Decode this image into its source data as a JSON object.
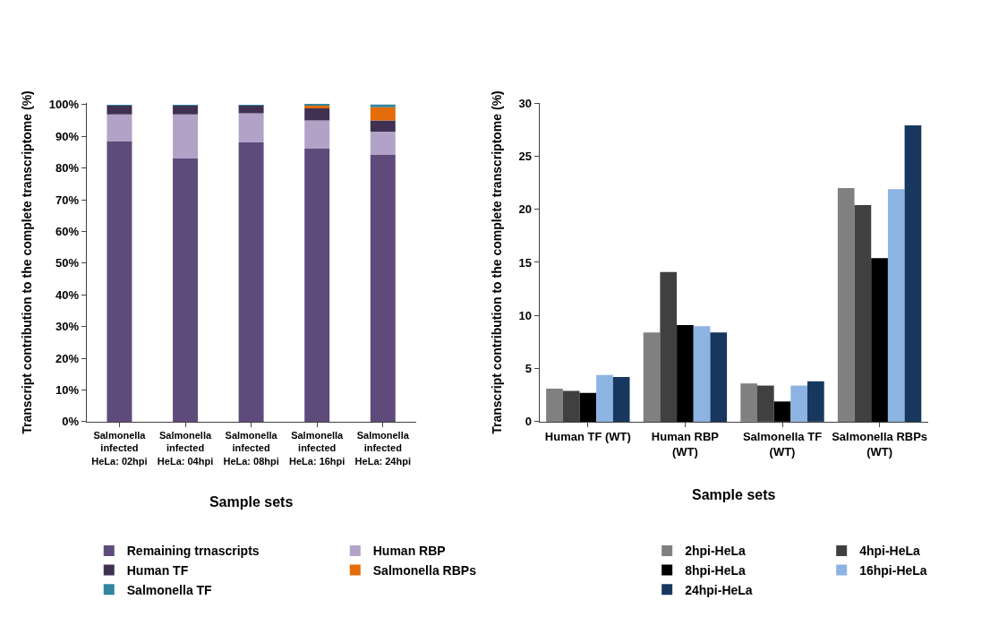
{
  "chart_data": [
    {
      "type": "bar",
      "stacked": true,
      "xlabel": "Sample sets",
      "ylabel": "Transcript contribution to the complete transcriptome (%)",
      "categories": [
        "Salmonella\ninfected\nHeLa: 02hpi",
        "Salmonella\ninfected\nHeLa: 04hpi",
        "Salmonella\ninfected\nHeLa: 08hpi",
        "Salmonella\ninfected\nHeLa: 16hpi",
        "Salmonella\ninfected\nHeLa: 24hpi"
      ],
      "series": [
        {
          "name": "Remaining trnascripts",
          "color": "#5f4b7b",
          "values": [
            88.5,
            83.0,
            88.1,
            86.1,
            84.3
          ]
        },
        {
          "name": "Human RBP",
          "color": "#b2a2c7",
          "values": [
            8.4,
            13.9,
            9.2,
            8.9,
            7.2
          ]
        },
        {
          "name": "Human TF",
          "color": "#403152",
          "values": [
            2.8,
            2.8,
            2.5,
            3.8,
            3.5
          ]
        },
        {
          "name": "Salmonella RBPs",
          "color": "#e46c0a",
          "values": [
            null,
            null,
            null,
            0.9,
            4.2
          ]
        },
        {
          "name": "Salmonella TF",
          "color": "#31859c",
          "values": [
            0.2,
            0.2,
            0.1,
            0.3,
            0.8
          ]
        }
      ],
      "ylim": [
        0,
        100.5
      ],
      "yticks": [
        {
          "value": 0,
          "label": "0%"
        },
        {
          "value": 10,
          "label": "10%"
        },
        {
          "value": 20,
          "label": "20%"
        },
        {
          "value": 30,
          "label": "30%"
        },
        {
          "value": 40,
          "label": "40%"
        },
        {
          "value": 50,
          "label": "50%"
        },
        {
          "value": 60,
          "label": "60%"
        },
        {
          "value": 70,
          "label": "70%"
        },
        {
          "value": 80,
          "label": "80%"
        },
        {
          "value": 90,
          "label": "90%"
        },
        {
          "value": 100,
          "label": "100%"
        }
      ],
      "legend": "bottom"
    },
    {
      "type": "bar",
      "xlabel": "Sample sets",
      "ylabel": "Transcript contribution to the complete transcriptome (%)",
      "categories": [
        "Human TF (WT)",
        "Human RBP\n(WT)",
        "Salmonella TF\n(WT)",
        "Salmonella RBPs\n(WT)"
      ],
      "series": [
        {
          "name": "2hpi-HeLa",
          "color": "#808080",
          "values": [
            3.1,
            8.4,
            3.6,
            22.0
          ]
        },
        {
          "name": "4hpi-HeLa",
          "color": "#404040",
          "values": [
            2.9,
            14.1,
            3.4,
            20.4
          ]
        },
        {
          "name": "8hpi-HeLa",
          "color": "#000000",
          "values": [
            2.7,
            9.1,
            1.9,
            15.4
          ]
        },
        {
          "name": "16hpi-HeLa",
          "color": "#8db3e2",
          "values": [
            4.4,
            9.0,
            3.4,
            21.9
          ]
        },
        {
          "name": "24hpi-HeLa",
          "color": "#17375e",
          "values": [
            4.2,
            8.4,
            3.8,
            27.9
          ]
        }
      ],
      "ylim": [
        0,
        30
      ],
      "yticks": [
        0,
        5,
        10,
        15,
        20,
        25,
        30
      ],
      "legend": "bottom"
    }
  ]
}
